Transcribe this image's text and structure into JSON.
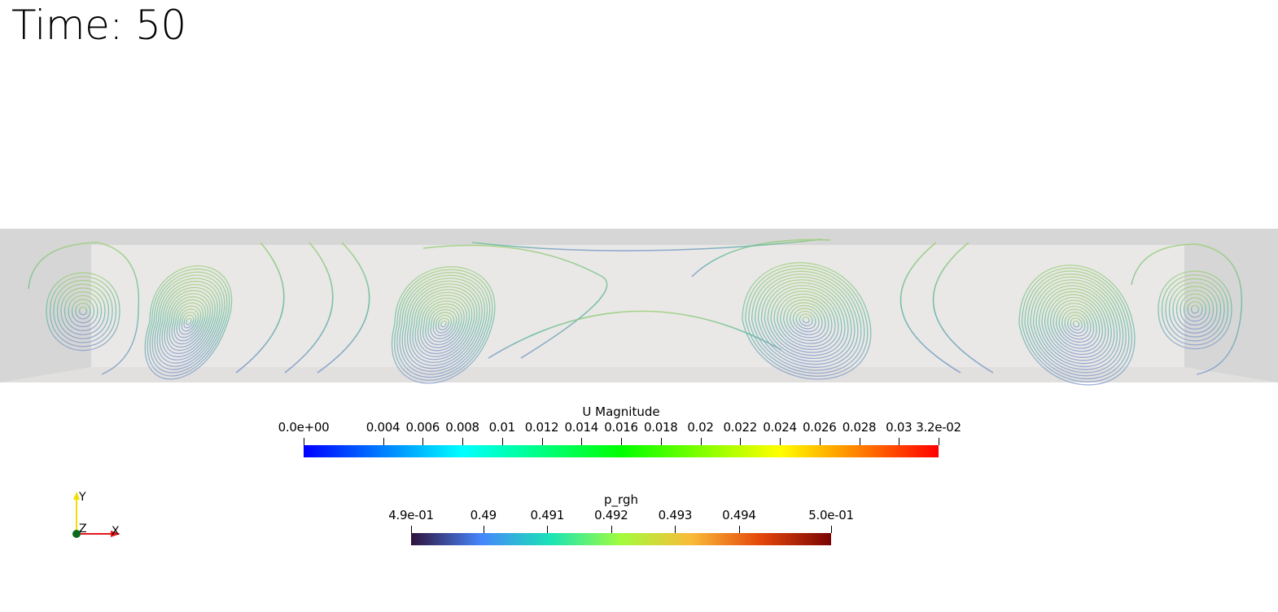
{
  "time_label": "Time: 50",
  "colorbars": [
    {
      "title": "U Magnitude",
      "range": [
        0.0,
        0.032
      ],
      "colors": [
        "#0000ff",
        "#00ffff",
        "#00ff00",
        "#ffff00",
        "#ff0000"
      ],
      "ticks": [
        {
          "value": 0.0,
          "label": "0.0e+00"
        },
        {
          "value": 0.004,
          "label": "0.004"
        },
        {
          "value": 0.006,
          "label": "0.006"
        },
        {
          "value": 0.008,
          "label": "0.008"
        },
        {
          "value": 0.01,
          "label": "0.01"
        },
        {
          "value": 0.012,
          "label": "0.012"
        },
        {
          "value": 0.014,
          "label": "0.014"
        },
        {
          "value": 0.016,
          "label": "0.016"
        },
        {
          "value": 0.018,
          "label": "0.018"
        },
        {
          "value": 0.02,
          "label": "0.02"
        },
        {
          "value": 0.022,
          "label": "0.022"
        },
        {
          "value": 0.024,
          "label": "0.024"
        },
        {
          "value": 0.026,
          "label": "0.026"
        },
        {
          "value": 0.028,
          "label": "0.028"
        },
        {
          "value": 0.03,
          "label": "0.03"
        },
        {
          "value": 0.032,
          "label": "3.2e-02"
        }
      ]
    },
    {
      "title": "p_rgh",
      "range": [
        0.48887,
        0.49544
      ],
      "colors": [
        "#30123b",
        "#4686fb",
        "#1ae4b6",
        "#a2fc3c",
        "#fabb39",
        "#e4460a",
        "#7a0403"
      ],
      "ticks": [
        {
          "value": 0.48887,
          "label": "4.9e-01"
        },
        {
          "value": 0.49,
          "label": "0.49"
        },
        {
          "value": 0.491,
          "label": "0.491"
        },
        {
          "value": 0.492,
          "label": "0.492"
        },
        {
          "value": 0.493,
          "label": "0.493"
        },
        {
          "value": 0.494,
          "label": "0.494"
        },
        {
          "value": 0.49544,
          "label": "5.0e-01"
        }
      ]
    }
  ],
  "axes": {
    "x": "X",
    "y": "Y",
    "z": "Z",
    "x_color": "#e8141a",
    "y_color": "#f0e000",
    "z_color": "#0a6a1a"
  }
}
